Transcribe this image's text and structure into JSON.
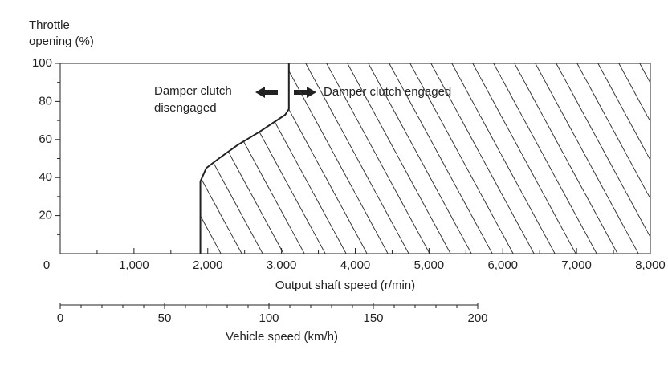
{
  "chart_data": {
    "type": "area",
    "ylabel": [
      "Throttle",
      "opening (%)"
    ],
    "xlabel": "Output shaft speed (r/min)",
    "x2label": "Vehicle speed (km/h)",
    "annotations": [
      [
        "Damper clutch",
        "disengaged"
      ],
      [
        "Damper clutch engaged"
      ]
    ],
    "series": [
      {
        "x": [
          1900,
          1900,
          1980,
          2150,
          2400,
          2700,
          3050,
          3100,
          3100
        ],
        "values": [
          0,
          38,
          45,
          50,
          57,
          64,
          73,
          76,
          100
        ],
        "color": "#222222"
      }
    ],
    "xlim": [
      0,
      8000
    ],
    "xticks": [
      0,
      {
        "value": 1000,
        "label": "1,000"
      },
      {
        "value": 2000,
        "label": "2,000"
      },
      {
        "value": 3000,
        "label": "3,000"
      },
      {
        "value": 4000,
        "label": "4,000"
      },
      {
        "value": 5000,
        "label": "5,000"
      },
      {
        "value": 6000,
        "label": "6,000"
      },
      {
        "value": 7000,
        "label": "7,000"
      },
      {
        "value": 8000,
        "label": "8,000"
      }
    ],
    "x_minor_ticks": [
      500,
      1500,
      2500,
      3500,
      4500,
      5500,
      6500,
      7500
    ],
    "ylim": [
      0,
      100
    ],
    "yticks": [
      20,
      40,
      60,
      80,
      100
    ],
    "y_minor_ticks": [
      10,
      30,
      50,
      70,
      90
    ],
    "x2lim": [
      0,
      200
    ],
    "x2ticks": [
      0,
      50,
      100,
      150,
      200
    ],
    "x2_minor_ticks": [
      10,
      20,
      30,
      40,
      60,
      70,
      80,
      90,
      110,
      120,
      130,
      140,
      160,
      170,
      180,
      190
    ]
  }
}
